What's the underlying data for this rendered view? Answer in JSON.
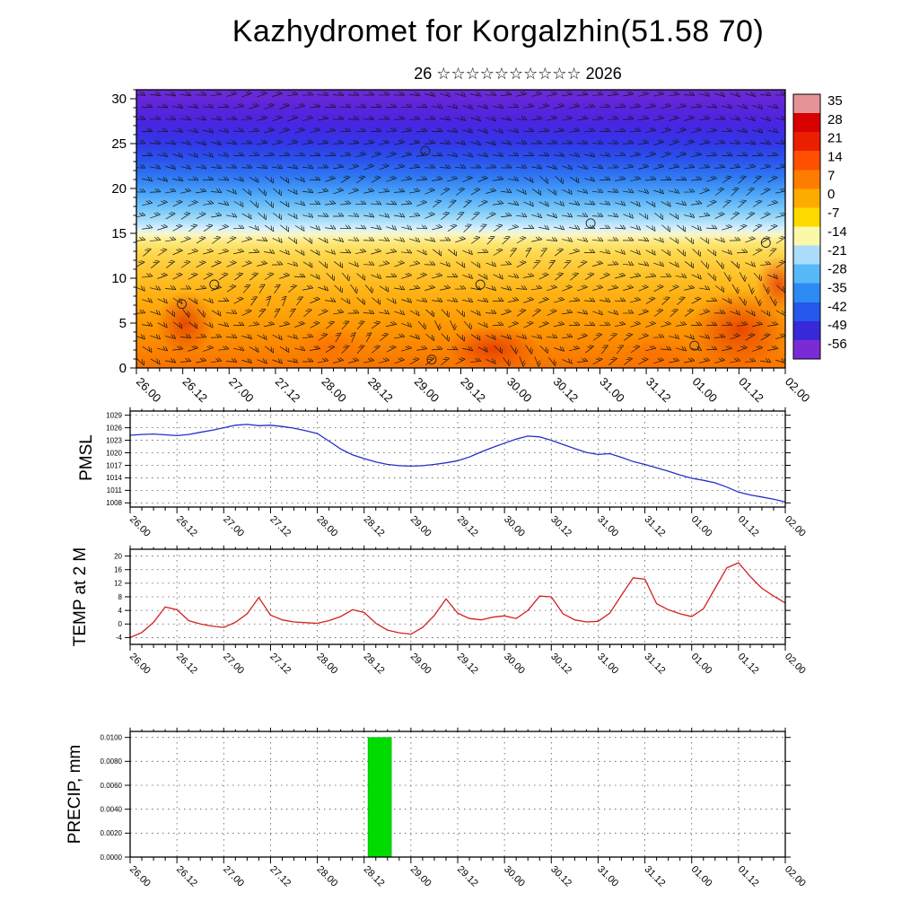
{
  "title": "Kazhydromet for Korgalzhin(51.58 70)",
  "subtitle": "26 ☆☆☆☆☆☆☆☆☆☆ 2026",
  "x_axis": {
    "tick_labels": [
      "26.00",
      "26.12",
      "27.00",
      "27.12",
      "28.00",
      "28.12",
      "29.00",
      "29.12",
      "30.00",
      "30.12",
      "31.00",
      "31.12",
      "01.00",
      "01.12",
      "02.00"
    ],
    "tick_hours": [
      0,
      12,
      24,
      36,
      48,
      60,
      72,
      84,
      96,
      108,
      120,
      132,
      144,
      156,
      168
    ],
    "hour_range": [
      0,
      168
    ],
    "minor_step_hours": 3
  },
  "chart_data": [
    {
      "id": "cross-section",
      "type": "heatmap",
      "description": "Time-height cross-section of air temperature (shaded, deg C per colorbar) with wind barbs; warm orange/red air below ~14, pale yellow band near 15, cold blue/purple air above 20.",
      "y_axis": {
        "ylim": [
          0,
          31
        ],
        "ticks": [
          0,
          5,
          10,
          15,
          20,
          25,
          30
        ]
      },
      "gradient_stops": [
        [
          0,
          "#6f2bd4"
        ],
        [
          7,
          "#5a23dc"
        ],
        [
          13,
          "#4527e2"
        ],
        [
          19,
          "#3336e6"
        ],
        [
          25,
          "#2a52ec"
        ],
        [
          31,
          "#2f76f2"
        ],
        [
          37,
          "#48a2f6"
        ],
        [
          43,
          "#78c8fa"
        ],
        [
          47,
          "#abdefb"
        ],
        [
          50,
          "#d8f0fd"
        ],
        [
          52,
          "#fbf6c4"
        ],
        [
          55,
          "#fce87a"
        ],
        [
          59,
          "#fdd74c"
        ],
        [
          66,
          "#fec32c"
        ],
        [
          74,
          "#feb012"
        ],
        [
          83,
          "#fd9c04"
        ],
        [
          91,
          "#fc8a01"
        ],
        [
          100,
          "#f87300"
        ]
      ],
      "colorbar": {
        "labels": [
          "35",
          "28",
          "21",
          "14",
          "7",
          "0",
          "-7",
          "-14",
          "-21",
          "-28",
          "-35",
          "-42",
          "-49",
          "-56"
        ],
        "colors": [
          "#e69398",
          "#d80000",
          "#ec1e00",
          "#fe5000",
          "#fe7d00",
          "#feab00",
          "#fed900",
          "#fbf8a8",
          "#a9ddfb",
          "#58b9f8",
          "#2c8bf2",
          "#2457ea",
          "#3728da",
          "#7b2bd6"
        ]
      }
    },
    {
      "id": "pmsl",
      "type": "line",
      "ylabel": "PMSL",
      "line_color": "#2230c8",
      "ylim": [
        1007,
        1030
      ],
      "yticks": [
        1008,
        1011,
        1014,
        1017,
        1020,
        1023,
        1026,
        1029
      ],
      "x": [
        0,
        3,
        6,
        9,
        12,
        15,
        18,
        21,
        24,
        27,
        30,
        33,
        36,
        39,
        42,
        45,
        48,
        51,
        54,
        57,
        60,
        63,
        66,
        69,
        72,
        75,
        78,
        81,
        84,
        87,
        90,
        93,
        96,
        99,
        102,
        105,
        108,
        111,
        114,
        117,
        120,
        123,
        126,
        129,
        132,
        135,
        138,
        141,
        144,
        147,
        150,
        153,
        156,
        159,
        162,
        165,
        168
      ],
      "y": [
        1024.2,
        1024.4,
        1024.5,
        1024.3,
        1024.1,
        1024.4,
        1024.9,
        1025.4,
        1026.0,
        1026.6,
        1026.8,
        1026.5,
        1026.6,
        1026.3,
        1025.9,
        1025.3,
        1024.6,
        1022.8,
        1020.9,
        1019.5,
        1018.6,
        1017.8,
        1017.2,
        1016.9,
        1016.8,
        1016.9,
        1017.2,
        1017.6,
        1018.1,
        1019.0,
        1020.2,
        1021.3,
        1022.3,
        1023.3,
        1024.0,
        1023.8,
        1023.0,
        1022.0,
        1021.0,
        1020.1,
        1019.6,
        1019.8,
        1018.9,
        1017.9,
        1017.2,
        1016.4,
        1015.6,
        1014.7,
        1013.9,
        1013.4,
        1012.8,
        1011.8,
        1010.6,
        1009.9,
        1009.4,
        1008.9,
        1008.2
      ]
    },
    {
      "id": "temp2m",
      "type": "line",
      "ylabel": "TEMP at 2 M",
      "line_color": "#d42020",
      "ylim": [
        -6,
        22
      ],
      "yticks": [
        -4,
        0,
        4,
        8,
        12,
        16,
        20
      ],
      "x": [
        0,
        3,
        6,
        9,
        12,
        15,
        18,
        21,
        24,
        27,
        30,
        33,
        36,
        39,
        42,
        45,
        48,
        51,
        54,
        57,
        60,
        63,
        66,
        69,
        72,
        75,
        78,
        81,
        84,
        87,
        90,
        93,
        96,
        99,
        102,
        105,
        108,
        111,
        114,
        117,
        120,
        123,
        126,
        129,
        132,
        135,
        138,
        141,
        144,
        147,
        150,
        153,
        156,
        159,
        162,
        165,
        168
      ],
      "y": [
        -4.0,
        -2.5,
        0.5,
        5.0,
        4.2,
        1.0,
        0.0,
        -0.6,
        -1.0,
        0.5,
        3.0,
        7.8,
        2.6,
        1.2,
        0.6,
        0.4,
        0.2,
        1.0,
        2.2,
        4.2,
        3.4,
        0.2,
        -1.8,
        -2.6,
        -3.0,
        -1.0,
        2.5,
        7.4,
        3.2,
        1.6,
        1.2,
        2.0,
        2.4,
        1.6,
        4.0,
        8.2,
        8.0,
        3.0,
        1.2,
        0.6,
        0.8,
        3.2,
        8.5,
        13.6,
        13.2,
        6.0,
        4.2,
        3.0,
        2.2,
        4.5,
        10.5,
        16.5,
        18.0,
        14.0,
        10.5,
        8.2,
        6.2
      ]
    },
    {
      "id": "precip",
      "type": "bar",
      "ylabel": "PRECIP, mm",
      "bar_color": "#00dc00",
      "ylim": [
        0,
        0.0105
      ],
      "yticks": [
        0,
        0.002,
        0.004,
        0.006,
        0.008,
        0.01
      ],
      "ytick_labels": [
        "0.0000",
        "0.0020",
        "0.0040",
        "0.0060",
        "0.0080",
        "0.0100"
      ],
      "bars": [
        {
          "start_hour": 61,
          "end_hour": 67,
          "value": 0.01,
          "period_label": "28.12"
        }
      ]
    }
  ]
}
